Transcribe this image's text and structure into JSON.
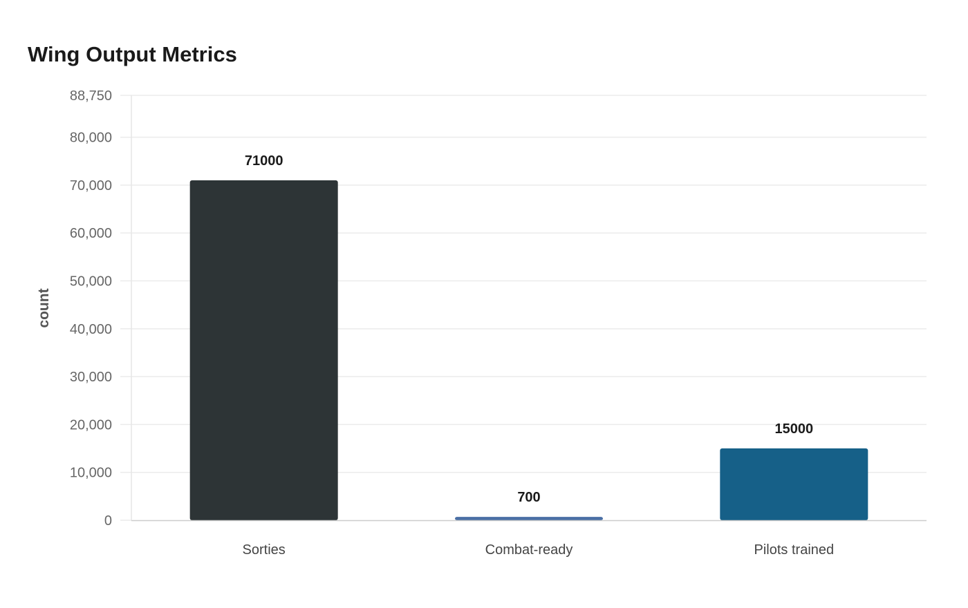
{
  "chart_data": {
    "type": "bar",
    "title": "Wing Output Metrics",
    "xlabel": "",
    "ylabel": "count",
    "categories": [
      "Sorties",
      "Combat-ready",
      "Pilots trained"
    ],
    "values": [
      71000,
      700,
      15000
    ],
    "value_labels": [
      "71000",
      "700",
      "15000"
    ],
    "colors": [
      "#2d3436",
      "#4a6fa5",
      "#166088"
    ],
    "ylim": [
      0,
      88750
    ],
    "yticks": [
      0,
      10000,
      20000,
      30000,
      40000,
      50000,
      60000,
      70000,
      80000,
      88750
    ],
    "ytick_labels": [
      "0",
      "10,000",
      "20,000",
      "30,000",
      "40,000",
      "50,000",
      "60,000",
      "70,000",
      "80,000",
      "88,750"
    ],
    "grid": true,
    "legend": "none"
  }
}
